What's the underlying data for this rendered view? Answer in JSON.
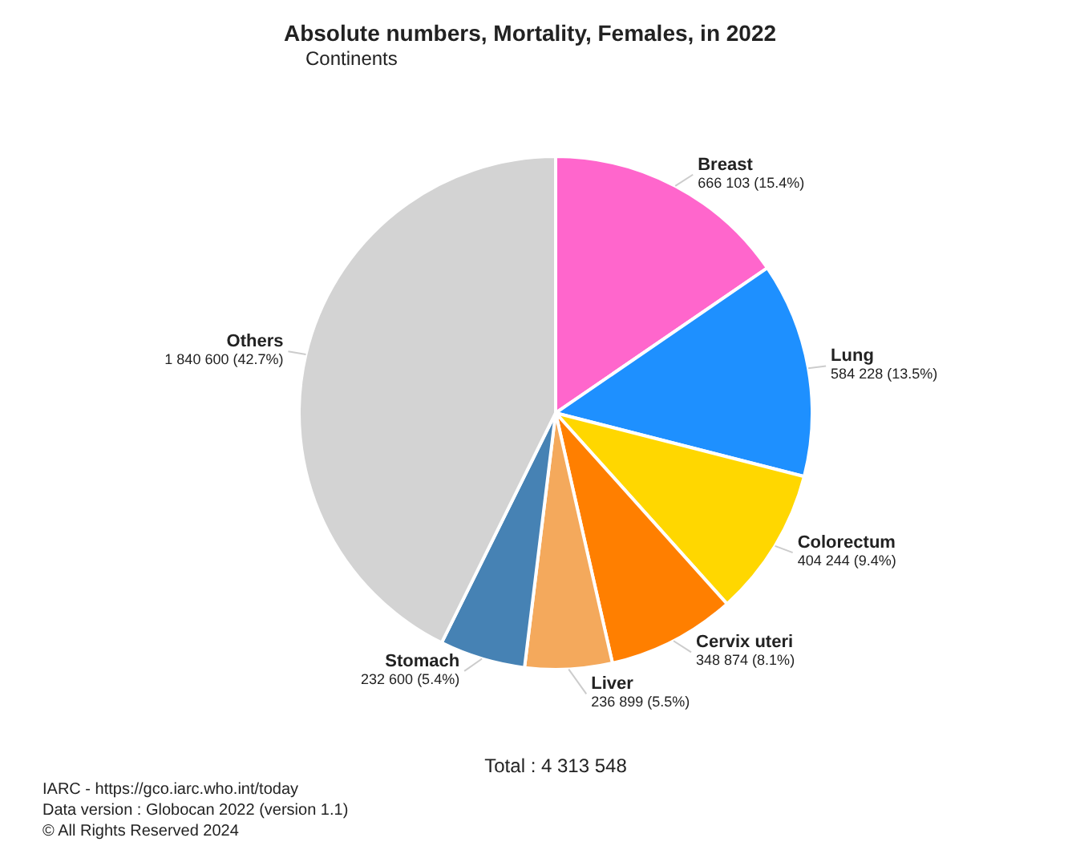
{
  "chart_data": {
    "type": "pie",
    "title": "Absolute numbers, Mortality, Females, in 2022",
    "subtitle": "Continents",
    "categories": [
      "Breast",
      "Lung",
      "Colorectum",
      "Cervix uteri",
      "Liver",
      "Stomach",
      "Others"
    ],
    "values": [
      666103,
      584228,
      404244,
      348874,
      236899,
      232600,
      1840600
    ],
    "value_labels": [
      "666 103 (15.4%)",
      "584 228 (13.5%)",
      "404 244 (9.4%)",
      "348 874 (8.1%)",
      "236 899 (5.5%)",
      "232 600 (5.4%)",
      "1 840 600 (42.7%)"
    ],
    "colors": [
      "#ff66cc",
      "#1e90ff",
      "#ffd700",
      "#ff7f00",
      "#f4a95c",
      "#4682b4",
      "#d3d3d3"
    ],
    "legend": false,
    "annotations": [
      "Total : 4 313 548",
      "IARC - https://gco.iarc.who.int/today",
      "Data version : Globocan 2022 (version 1.1)",
      "© All Rights Reserved 2024"
    ]
  }
}
